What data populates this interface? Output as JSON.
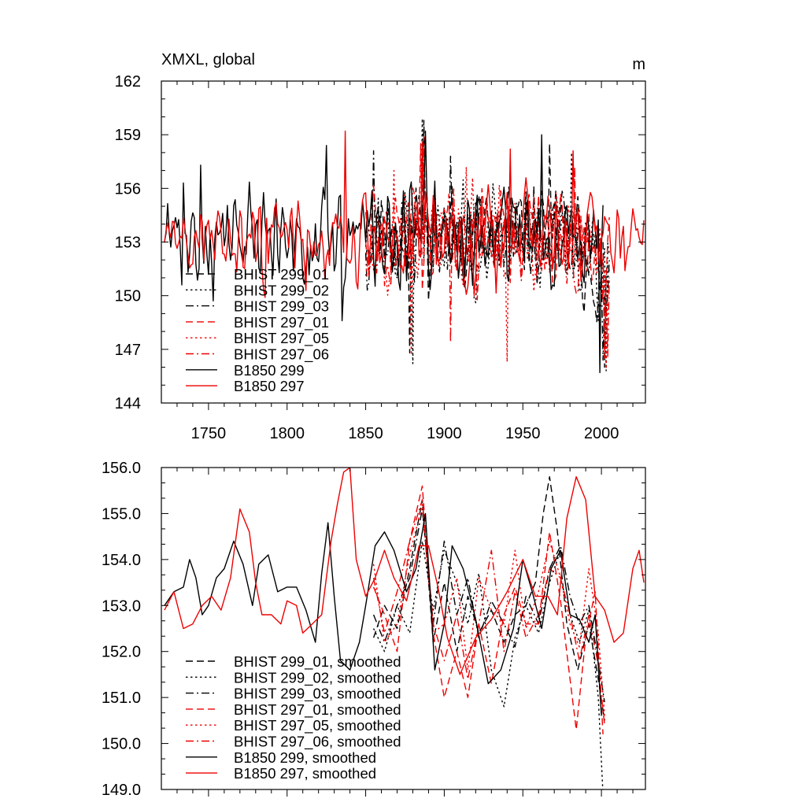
{
  "colors": {
    "black": "#000000",
    "red": "#ee0000"
  },
  "chart_data": [
    {
      "type": "line",
      "title": "XMXL, global",
      "units": "m",
      "xlim": [
        1720,
        2028
      ],
      "ylim": [
        144,
        162
      ],
      "xticks": [
        "1750",
        "1800",
        "1850",
        "1900",
        "1950",
        "2000"
      ],
      "xtick_values": [
        1750,
        1800,
        1850,
        1900,
        1950,
        2000
      ],
      "yticks": [
        "144",
        "147",
        "150",
        "153",
        "156",
        "159",
        "162"
      ],
      "ytick_values": [
        144,
        147,
        150,
        153,
        156,
        159,
        162
      ],
      "legend_position": "lower-left",
      "series": [
        {
          "name": "BHIST 299_01",
          "color": "black",
          "dash": "dash",
          "start": 1850,
          "end": 2005,
          "seed": 11,
          "mean": 153.5,
          "amp": 1.9,
          "trend": -2.5,
          "peaks": [
            [
              1887,
              159.8
            ],
            [
              1967,
              158.5
            ],
            [
              2002,
              146.0
            ],
            [
              1878,
              146.8
            ]
          ]
        },
        {
          "name": "BHIST 299_02",
          "color": "black",
          "dash": "dot",
          "start": 1850,
          "end": 2005,
          "seed": 23,
          "mean": 153.4,
          "amp": 1.9,
          "trend": -2.0,
          "peaks": [
            [
              1886,
              159.9
            ],
            [
              1880,
              146.2
            ],
            [
              1981,
              158.0
            ],
            [
              2003,
              145.8
            ]
          ]
        },
        {
          "name": "BHIST 299_03",
          "color": "black",
          "dash": "dashdot",
          "start": 1850,
          "end": 2005,
          "seed": 37,
          "mean": 153.3,
          "amp": 1.8,
          "trend": -2.0,
          "peaks": [
            [
              1855,
              158.1
            ],
            [
              1904,
              157.8
            ],
            [
              2001,
              146.4
            ]
          ]
        },
        {
          "name": "BHIST 297_01",
          "color": "red",
          "dash": "dash",
          "start": 1850,
          "end": 2005,
          "seed": 41,
          "mean": 153.4,
          "amp": 1.8,
          "trend": -1.5,
          "peaks": [
            [
              1885,
              158.5
            ],
            [
              1983,
              157.2
            ],
            [
              2002,
              146.5
            ]
          ]
        },
        {
          "name": "BHIST 297_05",
          "color": "red",
          "dash": "dot",
          "start": 1850,
          "end": 2005,
          "seed": 53,
          "mean": 153.3,
          "amp": 1.9,
          "trend": -1.8,
          "peaks": [
            [
              1940,
              146.3
            ],
            [
              1879,
              146.7
            ],
            [
              2003,
              145.9
            ],
            [
              1868,
              157.0
            ]
          ]
        },
        {
          "name": "BHIST 297_06",
          "color": "red",
          "dash": "dashdot",
          "start": 1850,
          "end": 2005,
          "seed": 67,
          "mean": 153.4,
          "amp": 1.8,
          "trend": -1.6,
          "peaks": [
            [
              1887,
              158.9
            ],
            [
              1904,
              147.4
            ],
            [
              2004,
              146.6
            ]
          ]
        },
        {
          "name": "B1850 299",
          "color": "black",
          "dash": "solid",
          "start": 1722,
          "end": 2001,
          "seed": 71,
          "mean": 153.2,
          "amp": 1.9,
          "trend": 0,
          "peaks": [
            [
              1734,
              156.3
            ],
            [
              1745,
              157.3
            ],
            [
              1825,
              158.4
            ],
            [
              1888,
              159.2
            ],
            [
              1962,
              159.0
            ],
            [
              1999,
              145.7
            ],
            [
              1835,
              148.6
            ]
          ]
        },
        {
          "name": "B1850 297",
          "color": "red",
          "dash": "solid",
          "start": 1722,
          "end": 2027,
          "seed": 89,
          "mean": 153.2,
          "amp": 1.8,
          "trend": 0,
          "peaks": [
            [
              1837,
              159.2
            ],
            [
              1886,
              158.6
            ],
            [
              1942,
              158.2
            ],
            [
              1982,
              158.1
            ],
            [
              1786,
              149.9
            ]
          ]
        }
      ]
    },
    {
      "type": "line",
      "title": "",
      "xlim": [
        1720,
        2028
      ],
      "ylim": [
        149,
        156
      ],
      "xtick_values": [
        1750,
        1800,
        1850,
        1900,
        1950,
        2000
      ],
      "yticks": [
        "149.0",
        "150.0",
        "151.0",
        "152.0",
        "153.0",
        "154.0",
        "155.0",
        "156.0"
      ],
      "ytick_values": [
        149,
        150,
        151,
        152,
        153,
        154,
        155,
        156
      ],
      "legend_position": "lower-left",
      "series": [
        {
          "name": "BHIST 299_01, smoothed",
          "color": "black",
          "dash": "dash",
          "x": [
            1855,
            1862,
            1870,
            1878,
            1886,
            1893,
            1900,
            1908,
            1915,
            1922,
            1930,
            1938,
            1945,
            1952,
            1958,
            1963,
            1967,
            1972,
            1978,
            1985,
            1992,
            1998,
            2002
          ],
          "y": [
            152.3,
            153.0,
            152.5,
            153.8,
            155.3,
            152.2,
            153.5,
            152.0,
            153.2,
            152.4,
            152.9,
            152.2,
            152.8,
            153.0,
            153.5,
            155.0,
            155.8,
            154.6,
            152.6,
            151.6,
            152.6,
            151.4,
            150.5
          ]
        },
        {
          "name": "BHIST 299_02, smoothed",
          "color": "black",
          "dash": "dot",
          "x": [
            1855,
            1862,
            1870,
            1878,
            1886,
            1893,
            1900,
            1908,
            1915,
            1922,
            1930,
            1938,
            1945,
            1952,
            1960,
            1967,
            1974,
            1980,
            1986,
            1992,
            1998,
            2001
          ],
          "y": [
            152.5,
            152.0,
            153.0,
            152.4,
            154.4,
            152.9,
            154.2,
            153.5,
            152.6,
            153.7,
            151.6,
            150.8,
            152.3,
            153.0,
            152.4,
            153.5,
            154.2,
            152.8,
            152.2,
            152.9,
            151.0,
            148.9
          ]
        },
        {
          "name": "BHIST 299_03, smoothed",
          "color": "black",
          "dash": "dashdot",
          "x": [
            1855,
            1862,
            1870,
            1878,
            1886,
            1893,
            1900,
            1908,
            1915,
            1922,
            1930,
            1938,
            1945,
            1952,
            1960,
            1967,
            1974,
            1980,
            1986,
            1992,
            1998,
            2002
          ],
          "y": [
            152.8,
            152.2,
            153.0,
            153.6,
            155.1,
            152.6,
            154.4,
            152.8,
            153.6,
            152.3,
            153.1,
            152.6,
            152.1,
            153.2,
            152.6,
            153.8,
            154.3,
            153.2,
            152.6,
            153.0,
            151.8,
            150.9
          ]
        },
        {
          "name": "BHIST 297_01, smoothed",
          "color": "red",
          "dash": "dash",
          "x": [
            1855,
            1862,
            1870,
            1878,
            1886,
            1893,
            1900,
            1908,
            1915,
            1922,
            1930,
            1938,
            1945,
            1952,
            1960,
            1967,
            1974,
            1980,
            1984,
            1990,
            1996,
            2001
          ],
          "y": [
            153.4,
            152.8,
            152.0,
            154.4,
            155.6,
            152.4,
            151.0,
            152.0,
            151.0,
            152.6,
            151.3,
            152.8,
            153.4,
            152.6,
            152.6,
            154.6,
            153.1,
            151.4,
            150.3,
            152.3,
            153.3,
            150.2
          ]
        },
        {
          "name": "BHIST 297_05, smoothed",
          "color": "red",
          "dash": "dot",
          "x": [
            1855,
            1862,
            1870,
            1878,
            1886,
            1893,
            1900,
            1908,
            1915,
            1922,
            1930,
            1938,
            1945,
            1952,
            1960,
            1967,
            1974,
            1980,
            1986,
            1992,
            1998,
            2002
          ],
          "y": [
            153.9,
            152.2,
            152.6,
            154.1,
            155.2,
            152.4,
            152.6,
            153.6,
            151.6,
            153.6,
            152.9,
            152.6,
            154.2,
            152.5,
            153.3,
            154.4,
            153.6,
            152.6,
            152.1,
            153.8,
            152.4,
            150.6
          ]
        },
        {
          "name": "BHIST 297_06, smoothed",
          "color": "red",
          "dash": "dashdot",
          "x": [
            1855,
            1862,
            1870,
            1878,
            1886,
            1893,
            1900,
            1908,
            1915,
            1922,
            1930,
            1938,
            1945,
            1952,
            1960,
            1967,
            1974,
            1980,
            1986,
            1992,
            1998,
            2002
          ],
          "y": [
            153.6,
            152.4,
            153.3,
            154.4,
            155.3,
            152.6,
            151.8,
            152.8,
            151.4,
            152.6,
            154.2,
            152.0,
            153.3,
            152.3,
            152.8,
            153.8,
            153.6,
            152.8,
            151.8,
            152.8,
            151.7,
            150.4
          ]
        },
        {
          "name": "B1850 299, smoothed",
          "color": "black",
          "dash": "solid",
          "x": [
            1722,
            1728,
            1734,
            1738,
            1742,
            1746,
            1750,
            1755,
            1760,
            1766,
            1772,
            1778,
            1782,
            1788,
            1794,
            1800,
            1806,
            1812,
            1818,
            1822,
            1826,
            1830,
            1834,
            1840,
            1846,
            1850,
            1856,
            1862,
            1868,
            1876,
            1882,
            1888,
            1894,
            1900,
            1905,
            1912,
            1920,
            1928,
            1936,
            1944,
            1950,
            1956,
            1962,
            1968,
            1974,
            1980,
            1986,
            1992,
            1996,
            2000
          ],
          "y": [
            153.0,
            153.3,
            153.4,
            154.0,
            153.6,
            152.8,
            153.0,
            153.6,
            153.8,
            154.4,
            153.9,
            153.0,
            153.9,
            154.1,
            153.3,
            153.4,
            153.4,
            152.9,
            152.2,
            153.7,
            154.8,
            153.2,
            151.8,
            151.6,
            152.2,
            153.0,
            154.3,
            154.6,
            154.2,
            153.3,
            153.8,
            155.0,
            151.6,
            152.6,
            154.3,
            153.8,
            152.7,
            151.3,
            151.6,
            152.5,
            154.0,
            153.3,
            152.5,
            153.8,
            154.2,
            152.8,
            152.7,
            152.2,
            152.8,
            150.6
          ]
        },
        {
          "name": "B1850 297, smoothed",
          "color": "red",
          "dash": "solid",
          "x": [
            1722,
            1728,
            1734,
            1740,
            1746,
            1752,
            1758,
            1764,
            1770,
            1776,
            1780,
            1784,
            1790,
            1796,
            1800,
            1806,
            1810,
            1816,
            1822,
            1828,
            1832,
            1836,
            1840,
            1844,
            1850,
            1856,
            1862,
            1868,
            1876,
            1884,
            1890,
            1896,
            1902,
            1910,
            1920,
            1930,
            1940,
            1950,
            1958,
            1966,
            1972,
            1978,
            1984,
            1990,
            1996,
            2002,
            2008,
            2014,
            2020,
            2024,
            2027
          ],
          "y": [
            152.9,
            153.3,
            152.5,
            152.6,
            153.0,
            153.2,
            152.9,
            153.6,
            155.1,
            154.6,
            153.5,
            152.8,
            152.8,
            152.6,
            153.1,
            153.0,
            152.4,
            152.6,
            152.8,
            154.4,
            155.2,
            155.9,
            156.0,
            154.0,
            153.2,
            153.6,
            154.2,
            153.6,
            153.1,
            154.3,
            154.3,
            153.4,
            152.3,
            151.5,
            152.3,
            152.7,
            153.3,
            154.0,
            153.2,
            153.2,
            152.8,
            154.9,
            155.8,
            155.3,
            153.2,
            152.9,
            152.2,
            152.4,
            153.8,
            154.2,
            153.5
          ]
        }
      ]
    }
  ]
}
